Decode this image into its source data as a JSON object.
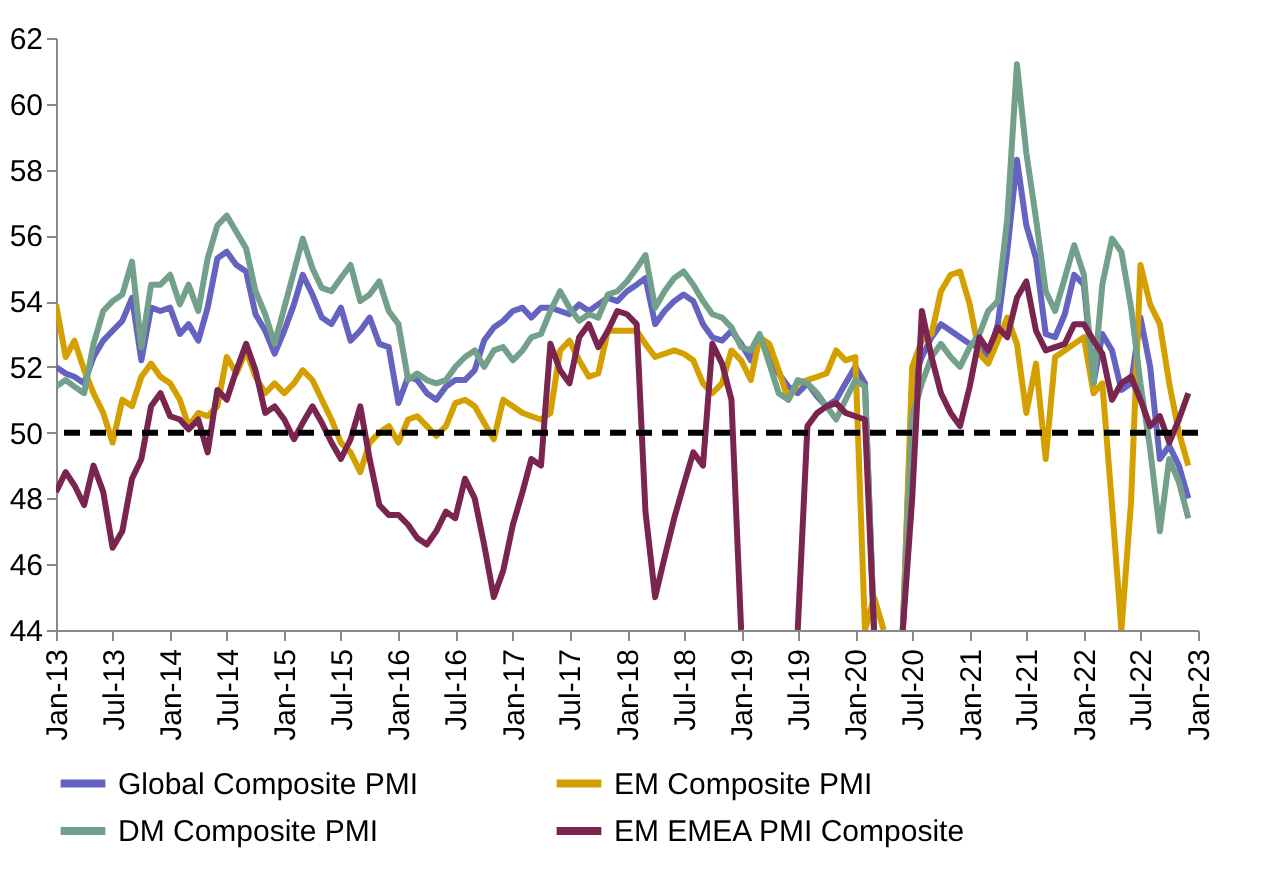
{
  "chart_data": {
    "type": "line",
    "x": [
      "2013-01",
      "2013-02",
      "2013-03",
      "2013-04",
      "2013-05",
      "2013-06",
      "2013-07",
      "2013-08",
      "2013-09",
      "2013-10",
      "2013-11",
      "2013-12",
      "2014-01",
      "2014-02",
      "2014-03",
      "2014-04",
      "2014-05",
      "2014-06",
      "2014-07",
      "2014-08",
      "2014-09",
      "2014-10",
      "2014-11",
      "2014-12",
      "2015-01",
      "2015-02",
      "2015-03",
      "2015-04",
      "2015-05",
      "2015-06",
      "2015-07",
      "2015-08",
      "2015-09",
      "2015-10",
      "2015-11",
      "2015-12",
      "2016-01",
      "2016-02",
      "2016-03",
      "2016-04",
      "2016-05",
      "2016-06",
      "2016-07",
      "2016-08",
      "2016-09",
      "2016-10",
      "2016-11",
      "2016-12",
      "2017-01",
      "2017-02",
      "2017-03",
      "2017-04",
      "2017-05",
      "2017-06",
      "2017-07",
      "2017-08",
      "2017-09",
      "2017-10",
      "2017-11",
      "2017-12",
      "2018-01",
      "2018-02",
      "2018-03",
      "2018-04",
      "2018-05",
      "2018-06",
      "2018-07",
      "2018-08",
      "2018-09",
      "2018-10",
      "2018-11",
      "2018-12",
      "2019-01",
      "2019-02",
      "2019-03",
      "2019-04",
      "2019-05",
      "2019-06",
      "2019-07",
      "2019-08",
      "2019-09",
      "2019-10",
      "2019-11",
      "2019-12",
      "2020-01",
      "2020-02",
      "2020-03",
      "2020-04",
      "2020-05",
      "2020-06",
      "2020-07",
      "2020-08",
      "2020-09",
      "2020-10",
      "2020-11",
      "2020-12",
      "2021-01",
      "2021-02",
      "2021-03",
      "2021-04",
      "2021-05",
      "2021-06",
      "2021-07",
      "2021-08",
      "2021-09",
      "2021-10",
      "2021-11",
      "2021-12",
      "2022-01",
      "2022-02",
      "2022-03",
      "2022-04",
      "2022-05",
      "2022-06",
      "2022-07",
      "2022-08",
      "2022-09",
      "2022-10",
      "2022-11",
      "2022-12"
    ],
    "series": [
      {
        "name": "Global Composite PMI",
        "color": "#6464c0",
        "values": [
          52.0,
          51.8,
          51.7,
          51.5,
          52.3,
          52.8,
          53.1,
          53.4,
          54.1,
          52.2,
          53.8,
          53.7,
          53.8,
          53.0,
          53.3,
          52.8,
          53.8,
          55.3,
          55.5,
          55.1,
          54.9,
          53.6,
          53.1,
          52.4,
          53.1,
          53.9,
          54.8,
          54.2,
          53.5,
          53.3,
          53.8,
          52.8,
          53.1,
          53.5,
          52.7,
          52.6,
          50.9,
          51.7,
          51.6,
          51.2,
          51.0,
          51.4,
          51.6,
          51.6,
          51.9,
          52.8,
          53.2,
          53.4,
          53.7,
          53.8,
          53.5,
          53.8,
          53.8,
          53.7,
          53.6,
          53.9,
          53.7,
          53.9,
          54.1,
          54.0,
          54.3,
          54.5,
          54.7,
          53.3,
          53.7,
          54.0,
          54.2,
          54.0,
          53.3,
          52.9,
          52.8,
          53.1,
          52.7,
          52.2,
          52.9,
          52.3,
          51.8,
          51.4,
          51.2,
          51.5,
          51.1,
          50.8,
          51.0,
          51.5,
          52.0,
          51.5,
          44.0,
          null,
          null,
          44.0,
          51.5,
          52.3,
          52.9,
          53.3,
          53.1,
          52.9,
          52.7,
          52.6,
          52.3,
          53.3,
          55.5,
          58.3,
          56.3,
          55.3,
          53.0,
          52.9,
          53.6,
          54.8,
          54.5,
          51.5,
          53.0,
          52.5,
          51.3,
          51.5,
          53.5,
          52.0,
          49.2,
          49.6,
          49.0,
          48.0
        ]
      },
      {
        "name": "EM Composite PMI",
        "color": "#d4a000",
        "values": [
          53.9,
          52.3,
          52.8,
          51.9,
          51.2,
          50.6,
          49.7,
          51.0,
          50.8,
          51.7,
          52.1,
          51.7,
          51.5,
          51.0,
          50.2,
          50.6,
          50.5,
          50.8,
          52.3,
          51.8,
          52.5,
          51.7,
          51.2,
          51.5,
          51.2,
          51.5,
          51.9,
          51.6,
          51.0,
          50.4,
          49.7,
          49.4,
          48.8,
          49.7,
          50.0,
          50.2,
          49.7,
          50.4,
          50.5,
          50.2,
          49.9,
          50.2,
          50.9,
          51.0,
          50.8,
          50.3,
          49.8,
          51.0,
          50.8,
          50.6,
          50.5,
          50.4,
          50.6,
          52.5,
          52.8,
          52.2,
          51.7,
          51.8,
          53.1,
          53.1,
          53.1,
          53.1,
          52.7,
          52.3,
          52.4,
          52.5,
          52.4,
          52.2,
          51.5,
          51.2,
          51.5,
          52.5,
          52.2,
          51.6,
          52.9,
          52.7,
          51.9,
          51.0,
          51.5,
          51.6,
          51.7,
          51.8,
          52.5,
          52.2,
          52.3,
          44.0,
          45.0,
          44.0,
          null,
          44.0,
          52.0,
          52.8,
          53.0,
          54.3,
          54.8,
          54.9,
          53.9,
          52.4,
          52.1,
          52.8,
          53.5,
          52.7,
          50.6,
          52.1,
          49.2,
          52.3,
          52.5,
          52.7,
          52.9,
          51.2,
          51.5,
          47.8,
          44.0,
          47.9,
          55.1,
          53.9,
          53.3,
          51.5,
          50.0,
          49.0
        ]
      },
      {
        "name": "DM Composite PMI",
        "color": "#72a08a",
        "values": [
          51.4,
          51.6,
          51.4,
          51.2,
          52.7,
          53.7,
          54.0,
          54.2,
          55.2,
          52.6,
          54.5,
          54.5,
          54.8,
          53.9,
          54.5,
          53.7,
          55.3,
          56.3,
          56.6,
          56.1,
          55.6,
          54.3,
          53.6,
          52.7,
          53.8,
          54.9,
          55.9,
          55.0,
          54.4,
          54.3,
          54.7,
          55.1,
          54.0,
          54.2,
          54.6,
          53.7,
          53.3,
          51.6,
          51.8,
          51.6,
          51.5,
          51.6,
          52.0,
          52.3,
          52.5,
          52.0,
          52.5,
          52.6,
          52.2,
          52.5,
          52.9,
          53.0,
          53.7,
          54.3,
          53.8,
          53.4,
          53.6,
          53.5,
          54.2,
          54.3,
          54.6,
          55.0,
          55.4,
          53.8,
          54.3,
          54.7,
          54.9,
          54.5,
          54.0,
          53.6,
          53.5,
          53.2,
          52.6,
          52.5,
          53.0,
          52.1,
          51.2,
          51.0,
          51.6,
          51.5,
          51.2,
          50.8,
          50.4,
          51.0,
          51.6,
          51.4,
          44.0,
          null,
          null,
          44.0,
          50.5,
          51.5,
          52.3,
          52.7,
          52.3,
          52.0,
          52.6,
          53.0,
          53.7,
          54.0,
          56.5,
          61.2,
          58.5,
          56.5,
          54.3,
          53.7,
          54.7,
          55.7,
          54.8,
          51.5,
          54.5,
          55.9,
          55.5,
          53.8,
          51.5,
          49.5,
          47.0,
          49.2,
          48.5,
          47.4
        ]
      },
      {
        "name": "EM EMEA PMI Composite",
        "color": "#7a2450",
        "values": [
          48.2,
          48.8,
          48.4,
          47.8,
          49.0,
          48.2,
          46.5,
          47.0,
          48.6,
          49.2,
          50.8,
          51.2,
          50.5,
          50.4,
          50.1,
          50.4,
          49.4,
          51.3,
          51.0,
          51.9,
          52.7,
          51.9,
          50.6,
          50.8,
          50.4,
          49.8,
          50.3,
          50.8,
          50.3,
          49.7,
          49.2,
          49.8,
          50.8,
          49.2,
          47.8,
          47.5,
          47.5,
          47.2,
          46.8,
          46.6,
          47.0,
          47.6,
          47.4,
          48.6,
          48.0,
          46.6,
          45.0,
          45.8,
          47.2,
          48.2,
          49.2,
          49.0,
          52.7,
          51.9,
          51.5,
          52.9,
          53.3,
          52.6,
          53.1,
          53.7,
          53.6,
          53.3,
          47.6,
          45.0,
          46.2,
          47.4,
          48.4,
          49.4,
          49.0,
          52.7,
          52.1,
          51.0,
          44.0,
          null,
          null,
          null,
          null,
          null,
          44.0,
          50.2,
          50.6,
          50.8,
          50.9,
          50.6,
          50.5,
          50.4,
          44.0,
          null,
          null,
          44.0,
          48.0,
          53.7,
          52.3,
          51.2,
          50.6,
          50.2,
          51.4,
          52.9,
          52.5,
          53.2,
          52.9,
          54.1,
          54.6,
          53.1,
          52.5,
          52.6,
          52.7,
          53.3,
          53.3,
          52.8,
          52.4,
          51.0,
          51.5,
          51.7,
          51.0,
          50.2,
          50.5,
          49.7,
          50.4,
          51.2
        ]
      }
    ],
    "xlim": [
      "2013-01",
      "2023-01"
    ],
    "xticks": [
      {
        "value": "2013-01",
        "label": "Jan-13"
      },
      {
        "value": "2013-07",
        "label": "Jul-13"
      },
      {
        "value": "2014-01",
        "label": "Jan-14"
      },
      {
        "value": "2014-07",
        "label": "Jul-14"
      },
      {
        "value": "2015-01",
        "label": "Jan-15"
      },
      {
        "value": "2015-07",
        "label": "Jul-15"
      },
      {
        "value": "2016-01",
        "label": "Jan-16"
      },
      {
        "value": "2016-07",
        "label": "Jul-16"
      },
      {
        "value": "2017-01",
        "label": "Jan-17"
      },
      {
        "value": "2017-07",
        "label": "Jul-17"
      },
      {
        "value": "2018-01",
        "label": "Jan-18"
      },
      {
        "value": "2018-07",
        "label": "Jul-18"
      },
      {
        "value": "2019-01",
        "label": "Jan-19"
      },
      {
        "value": "2019-07",
        "label": "Jul-19"
      },
      {
        "value": "2020-01",
        "label": "Jan-20"
      },
      {
        "value": "2020-07",
        "label": "Jul-20"
      },
      {
        "value": "2021-01",
        "label": "Jan-21"
      },
      {
        "value": "2021-07",
        "label": "Jul-21"
      },
      {
        "value": "2022-01",
        "label": "Jan-22"
      },
      {
        "value": "2022-07",
        "label": "Jul-22"
      },
      {
        "value": "2023-01",
        "label": "Jan-23"
      }
    ],
    "ylim": [
      44,
      62
    ],
    "yticks": [
      44,
      46,
      48,
      50,
      52,
      54,
      56,
      58,
      60,
      62
    ],
    "ref_lines": [
      {
        "axis": "y",
        "value": 50,
        "color": "#000000",
        "line_style": "dashed"
      }
    ],
    "grid": false,
    "legend": "bottom",
    "line_style": "solid",
    "marker": "none"
  }
}
